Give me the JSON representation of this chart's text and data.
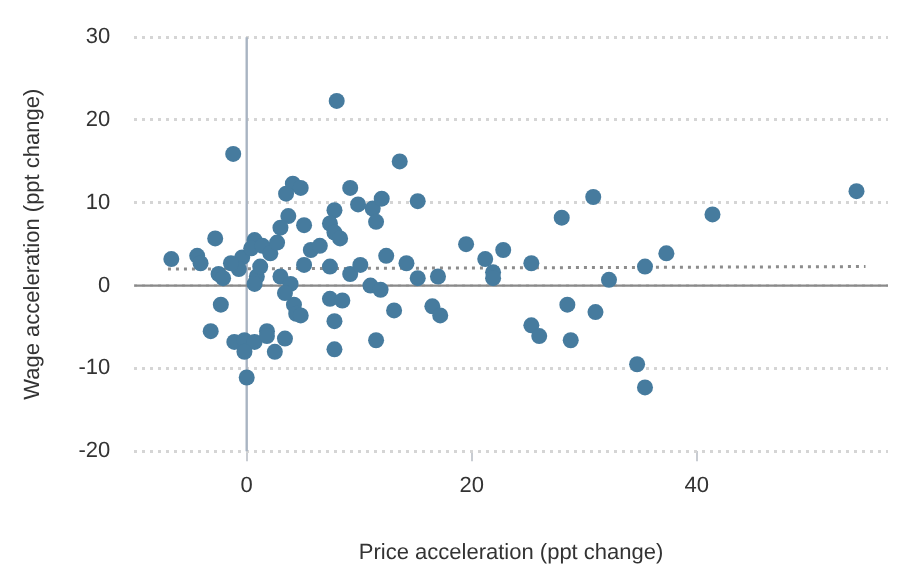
{
  "chart_data": {
    "type": "scatter",
    "xlabel": "Price acceleration (ppt change)",
    "ylabel": "Wage acceleration (ppt change)",
    "xlim": [
      -10,
      57
    ],
    "xticks": [
      0,
      20,
      40
    ],
    "ylim": [
      -20,
      30
    ],
    "yticks": [
      -20,
      -10,
      0,
      10,
      20,
      30
    ],
    "grid": "y",
    "legend": false,
    "marker": "circle",
    "ref_lines": [
      {
        "axis": "x",
        "value": 0,
        "color": "#a9b4c2"
      },
      {
        "axis": "y",
        "value": 0,
        "color": "#8a8a8a"
      }
    ],
    "series": [
      {
        "color": "#467b9e",
        "x": [
          -6.7,
          -4.4,
          -4.1,
          -2.8,
          -2.5,
          -3.2,
          -2.3,
          -1.2,
          -2.1,
          -1.1,
          -0.2,
          0.7,
          -0.2,
          0,
          1.8,
          1.8,
          3.4,
          2.5,
          4.2,
          4.4,
          4.8,
          7.4,
          8.5,
          7.8,
          7.8,
          11.5,
          11.0,
          11.9,
          9.2,
          7.4,
          3.0,
          3.9,
          3.4,
          5.1,
          0.9,
          0.7,
          8.0,
          13.6,
          4.1,
          4.8,
          3.5,
          9.2,
          9.9,
          11.2,
          12.0,
          11.5,
          3.7,
          5.1,
          7.8,
          7.4,
          7.8,
          0.7,
          15.2,
          19.5,
          21.2,
          22.8,
          28.0,
          30.8,
          41.4,
          54.2,
          37.3,
          25.3,
          14.2,
          15.2,
          17.0,
          21.9,
          21.9,
          35.4,
          32.2,
          13.1,
          16.5,
          17.2,
          28.5,
          31.0,
          25.3,
          26.0,
          28.8,
          34.7,
          35.4,
          -0.4,
          0.4,
          1.4,
          2.1,
          2.7,
          -0.7,
          -1.4,
          1.2,
          5.7,
          6.5,
          10.1,
          12.4,
          8.3,
          3.0
        ],
        "values": [
          3.2,
          3.6,
          2.7,
          5.7,
          1.4,
          -5.5,
          -2.3,
          15.9,
          0.9,
          -6.8,
          -6.6,
          -6.8,
          -8.0,
          -11.1,
          -5.5,
          -6.1,
          -6.4,
          -8.0,
          -2.3,
          -3.4,
          -3.6,
          -1.6,
          -1.8,
          -4.3,
          -7.7,
          -6.6,
          0,
          -0.5,
          1.4,
          2.3,
          1.1,
          0.2,
          -0.9,
          2.5,
          1.1,
          0.2,
          22.3,
          15.0,
          12.3,
          11.8,
          11.1,
          11.8,
          9.8,
          9.3,
          10.5,
          7.7,
          8.4,
          7.3,
          9.1,
          7.5,
          6.4,
          5.5,
          10.2,
          5.0,
          3.2,
          4.3,
          8.2,
          10.7,
          8.6,
          11.4,
          3.9,
          2.7,
          2.7,
          0.9,
          1.1,
          1.6,
          0.9,
          2.3,
          0.7,
          -3.0,
          -2.5,
          -3.6,
          -2.3,
          -3.2,
          -4.8,
          -6.1,
          -6.6,
          -9.5,
          -12.3,
          3.4,
          4.5,
          4.8,
          3.9,
          5.2,
          2.0,
          2.7,
          2.3,
          4.3,
          4.8,
          2.5,
          3.6,
          5.7,
          7.0
        ]
      },
      {
        "type": "line",
        "color": "#8c8c8c",
        "line_style": "dotted",
        "marker": "none",
        "x": [
          -7,
          55
        ],
        "values": [
          2.0,
          2.3
        ]
      }
    ]
  }
}
